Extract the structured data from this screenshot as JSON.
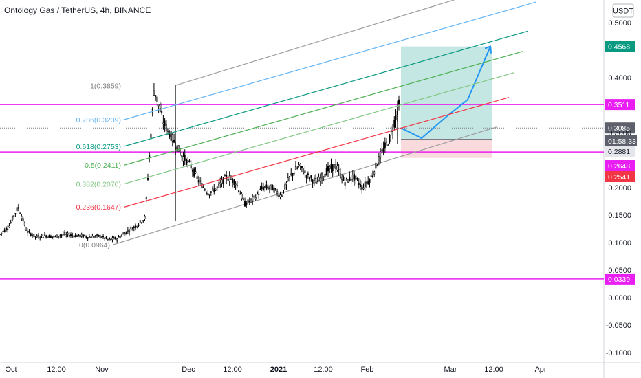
{
  "header": {
    "title": "Ontology Gas / TetherUS, 4h, BINANCE"
  },
  "currency_button": "USDT",
  "chart_data": {
    "type": "line",
    "title": "Ontology Gas / TetherUS, 4h, BINANCE",
    "currency": "USDT",
    "ylim": [
      -0.1,
      0.52
    ],
    "y_ticks": [
      "0.5000",
      "0.4000",
      "0.3000",
      "0.2000",
      "0.1500",
      "0.1000",
      "0.0500",
      "0.0000",
      "-0.0500",
      "-0.1000"
    ],
    "y_tick_values": [
      0.5,
      0.4,
      0.3,
      0.2,
      0.15,
      0.1,
      0.05,
      0.0,
      -0.05,
      -0.1
    ],
    "x_ticks": [
      {
        "label": "Oct",
        "bold": false
      },
      {
        "label": "12:00",
        "bold": false
      },
      {
        "label": "Nov",
        "bold": false
      },
      {
        "label": "Dec",
        "bold": false
      },
      {
        "label": "12:00",
        "bold": false
      },
      {
        "label": "2021",
        "bold": true
      },
      {
        "label": "12:00",
        "bold": false
      },
      {
        "label": "Feb",
        "bold": false
      },
      {
        "label": "Mar",
        "bold": false
      },
      {
        "label": "12:00",
        "bold": false
      },
      {
        "label": "Apr",
        "bold": false
      }
    ],
    "series": [
      {
        "values": [
          0.115,
          0.13,
          0.165,
          0.12,
          0.11,
          0.113,
          0.11,
          0.115,
          0.113,
          0.112,
          0.11,
          0.112,
          0.105,
          0.108,
          0.12,
          0.13,
          0.145,
          0.38,
          0.32,
          0.29,
          0.26,
          0.24,
          0.21,
          0.19,
          0.2,
          0.22,
          0.21,
          0.17,
          0.18,
          0.2,
          0.2,
          0.185,
          0.22,
          0.24,
          0.22,
          0.21,
          0.23,
          0.24,
          0.21,
          0.22,
          0.2,
          0.22,
          0.26,
          0.29,
          0.35
        ]
      }
    ],
    "fib_levels": [
      {
        "label": "1(0.3859)",
        "value": 0.3859,
        "color": "#808080"
      },
      {
        "label": "0.786(0.3239)",
        "value": 0.3239,
        "color": "#64b5f6"
      },
      {
        "label": "0.618(0.2753)",
        "value": 0.2753,
        "color": "#089981"
      },
      {
        "label": "0.5(0.2411)",
        "value": 0.2411,
        "color": "#4caf50"
      },
      {
        "label": "0.382(0.2070)",
        "value": 0.207,
        "color": "#81c784"
      },
      {
        "label": "0.236(0.1647)",
        "value": 0.1647,
        "color": "#f23645"
      },
      {
        "label": "0(0.0964)",
        "value": 0.0964,
        "color": "#808080"
      }
    ],
    "horizontal_lines": [
      {
        "value": 0.3511,
        "color": "#e91ef2"
      },
      {
        "value": 0.2648,
        "color": "#e91ef2"
      },
      {
        "value": 0.0339,
        "color": "#e91ef2"
      }
    ],
    "price_badges": [
      {
        "text": "0.4568",
        "bg": "#089981",
        "fg": "#ffffff"
      },
      {
        "text": "0.3511",
        "bg": "#e91ef2",
        "fg": "#ffffff"
      },
      {
        "text": "0.3085",
        "bg": "#5d606b",
        "fg": "#ffffff"
      },
      {
        "text": "01:58:33",
        "bg": "#5d606b",
        "fg": "#ffffff"
      },
      {
        "text": "0.2881",
        "bg": "#e4e6eb",
        "fg": "#131722"
      },
      {
        "text": "0.2648",
        "bg": "#e91ef2",
        "fg": "#ffffff"
      },
      {
        "text": "0.2541",
        "bg": "#f23645",
        "fg": "#ffffff"
      },
      {
        "text": "0.0339",
        "bg": "#e91ef2",
        "fg": "#ffffff"
      }
    ],
    "position_box": {
      "target": 0.4568,
      "entry": 0.2881,
      "stop": 0.2541
    },
    "projection_path": [
      0.3085,
      0.29,
      0.33,
      0.36,
      0.4568
    ],
    "colors": {
      "price": "#000000",
      "channel": "#9e9e9e",
      "projection": "#2196f3",
      "target_fill": "#b2dfdb",
      "stop_fill": "#f8d7da"
    }
  }
}
